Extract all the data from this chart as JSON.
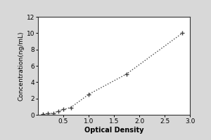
{
  "x_data": [
    0.1,
    0.2,
    0.3,
    0.4,
    0.5,
    0.65,
    1.0,
    1.75,
    2.85
  ],
  "y_data": [
    0.1,
    0.15,
    0.2,
    0.45,
    0.65,
    0.9,
    2.5,
    5.0,
    10.0
  ],
  "xlabel": "Optical Density",
  "ylabel": "Concentration(ng/mL)",
  "xlim": [
    0,
    3.0
  ],
  "ylim": [
    0,
    12
  ],
  "xticks": [
    0.5,
    1,
    1.5,
    2,
    2.5,
    3
  ],
  "yticks": [
    0,
    2,
    4,
    6,
    8,
    10,
    12
  ],
  "line_color": "#444444",
  "marker_color": "#444444",
  "bg_color": "#d8d8d8",
  "plot_bg_color": "#ffffff",
  "marker": "+",
  "markersize": 5,
  "markeredgewidth": 1.0,
  "linewidth": 1.0,
  "linestyle": "dotted",
  "xlabel_fontsize": 7,
  "ylabel_fontsize": 6.5,
  "tick_fontsize": 6.5,
  "xlabel_fontweight": "bold"
}
